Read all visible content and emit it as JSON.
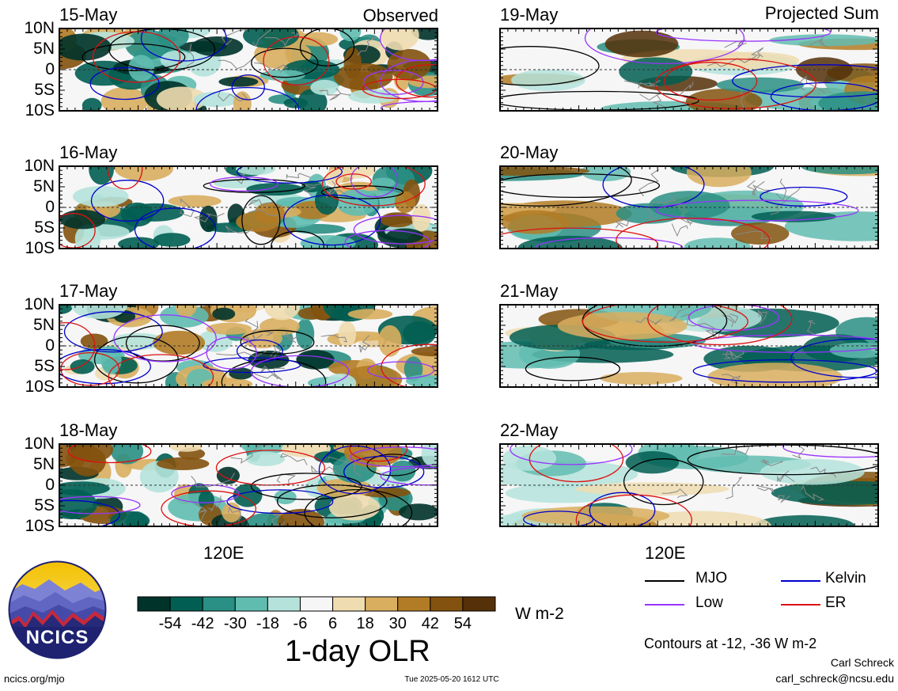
{
  "headers": {
    "left": "Observed",
    "right": "Projected Sum"
  },
  "ytick_labels": [
    "10N",
    "5N",
    "0",
    "5S",
    "10S"
  ],
  "xtick_label": "120E",
  "observed_dates": [
    "15-May",
    "16-May",
    "17-May",
    "18-May"
  ],
  "projected_dates": [
    "19-May",
    "20-May",
    "21-May",
    "22-May"
  ],
  "colorbar": {
    "ticks": [
      "-54",
      "-42",
      "-30",
      "-18",
      "-6",
      "6",
      "18",
      "30",
      "42",
      "54"
    ],
    "colors": [
      "#00332a",
      "#015e52",
      "#2a8f84",
      "#61bcb0",
      "#b5e3dc",
      "#f6f6f6",
      "#efdcb0",
      "#d9ae5f",
      "#b27b25",
      "#83520e",
      "#553008"
    ],
    "units": "W m-2",
    "title": "1-day OLR"
  },
  "legend": {
    "items": [
      {
        "label": "MJO",
        "color": "#000000"
      },
      {
        "label": "Kelvin",
        "color": "#0000cc"
      },
      {
        "label": "Low",
        "color": "#9933ff"
      },
      {
        "label": "ER",
        "color": "#dd1111"
      }
    ],
    "contour_note": "Contours at -12, -36 W m-2"
  },
  "logo": {
    "text": "NCICS"
  },
  "footer": {
    "url": "ncics.org/mjo",
    "timestamp": "Tue 2025-05-20 1612 UTC",
    "author": "Carl Schreck",
    "email": "carl_schreck@ncsu.edu"
  },
  "chart_data": {
    "type": "heatmap",
    "title": "1-day OLR",
    "units": "W m-2",
    "y_axis": {
      "labels": [
        "10N",
        "5N",
        "0",
        "5S",
        "10S"
      ],
      "range": [
        -10,
        10
      ]
    },
    "x_axis": {
      "labels": [
        "120E"
      ]
    },
    "panels": [
      {
        "date": "15-May",
        "group": "Observed"
      },
      {
        "date": "16-May",
        "group": "Observed"
      },
      {
        "date": "17-May",
        "group": "Observed"
      },
      {
        "date": "18-May",
        "group": "Observed"
      },
      {
        "date": "19-May",
        "group": "Projected Sum"
      },
      {
        "date": "20-May",
        "group": "Projected Sum"
      },
      {
        "date": "21-May",
        "group": "Projected Sum"
      },
      {
        "date": "22-May",
        "group": "Projected Sum"
      }
    ],
    "color_levels": [
      -54,
      -42,
      -30,
      -18,
      -6,
      6,
      18,
      30,
      42,
      54
    ],
    "contour_levels": [
      -12,
      -36
    ],
    "series": [
      {
        "name": "MJO",
        "color": "#000000"
      },
      {
        "name": "Kelvin",
        "color": "#0000cc"
      },
      {
        "name": "Low",
        "color": "#9933ff"
      },
      {
        "name": "ER",
        "color": "#dd1111"
      }
    ]
  }
}
